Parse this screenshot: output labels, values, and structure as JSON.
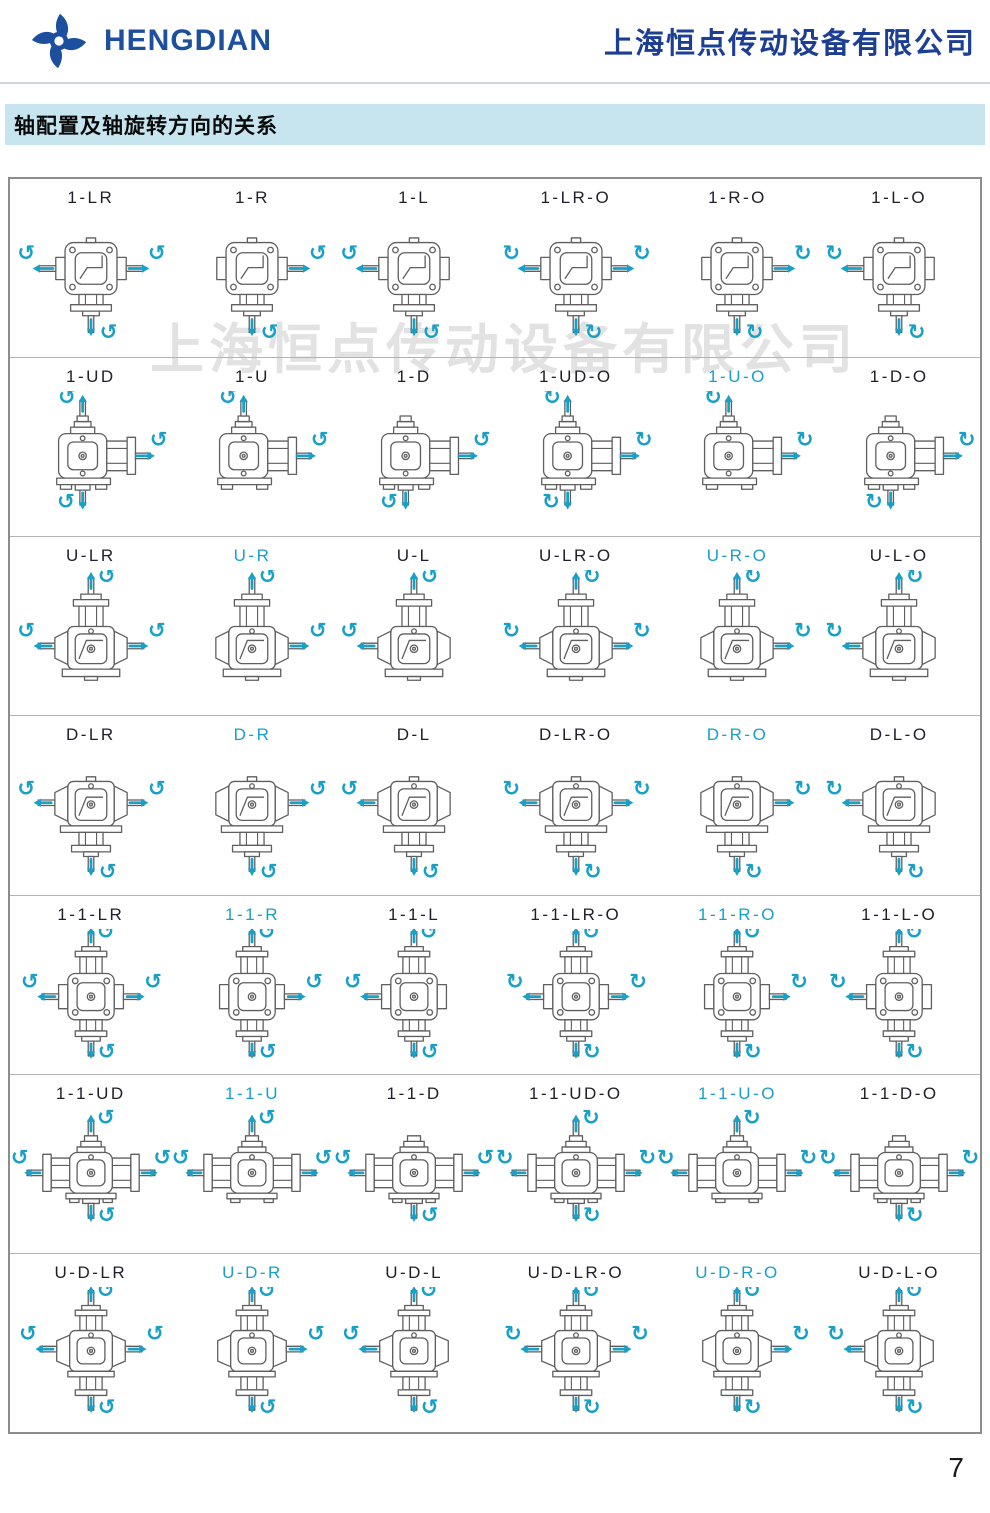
{
  "header": {
    "logo_text": "HENGDIAN",
    "company_name": "上海恒点传动设备有限公司"
  },
  "section": {
    "title": "轴配置及轴旋转方向的关系"
  },
  "watermark": "上海恒点传动设备有限公司",
  "page_number": "7",
  "colors": {
    "accent_teal": "#19a0c6",
    "brand_blue": "#1d4f9f",
    "company_navy": "#1c3f93",
    "section_bg": "#c7e5ef",
    "label_dark": "#20202b",
    "watermark_gray": "#e2e2e2"
  },
  "grid": {
    "rows": [
      {
        "view": "top",
        "cells": [
          {
            "label": "1-LR",
            "highlight": false,
            "shafts": [
              "L",
              "R",
              "D"
            ],
            "reversed": false
          },
          {
            "label": "1-R",
            "highlight": false,
            "shafts": [
              "R",
              "D"
            ],
            "reversed": false
          },
          {
            "label": "1-L",
            "highlight": false,
            "shafts": [
              "L",
              "D"
            ],
            "reversed": false
          },
          {
            "label": "1-LR-O",
            "highlight": false,
            "shafts": [
              "L",
              "R",
              "D"
            ],
            "reversed": true
          },
          {
            "label": "1-R-O",
            "highlight": false,
            "shafts": [
              "R",
              "D"
            ],
            "reversed": true
          },
          {
            "label": "1-L-O",
            "highlight": false,
            "shafts": [
              "L",
              "D"
            ],
            "reversed": true
          }
        ]
      },
      {
        "view": "side",
        "cells": [
          {
            "label": "1-UD",
            "highlight": false,
            "shafts": [
              "U",
              "D",
              "R"
            ],
            "reversed": false
          },
          {
            "label": "1-U",
            "highlight": false,
            "shafts": [
              "U",
              "R"
            ],
            "reversed": false
          },
          {
            "label": "1-D",
            "highlight": false,
            "shafts": [
              "D",
              "R"
            ],
            "reversed": false
          },
          {
            "label": "1-UD-O",
            "highlight": false,
            "shafts": [
              "U",
              "D",
              "R"
            ],
            "reversed": true
          },
          {
            "label": "1-U-O",
            "highlight": true,
            "shafts": [
              "U",
              "R"
            ],
            "reversed": true
          },
          {
            "label": "1-D-O",
            "highlight": false,
            "shafts": [
              "D",
              "R"
            ],
            "reversed": true
          }
        ]
      },
      {
        "view": "front-up",
        "cells": [
          {
            "label": "U-LR",
            "highlight": false,
            "shafts": [
              "U",
              "L",
              "R"
            ],
            "reversed": false
          },
          {
            "label": "U-R",
            "highlight": true,
            "shafts": [
              "U",
              "R"
            ],
            "reversed": false
          },
          {
            "label": "U-L",
            "highlight": false,
            "shafts": [
              "U",
              "L"
            ],
            "reversed": false
          },
          {
            "label": "U-LR-O",
            "highlight": false,
            "shafts": [
              "U",
              "L",
              "R"
            ],
            "reversed": true
          },
          {
            "label": "U-R-O",
            "highlight": true,
            "shafts": [
              "U",
              "R"
            ],
            "reversed": true
          },
          {
            "label": "U-L-O",
            "highlight": false,
            "shafts": [
              "U",
              "L"
            ],
            "reversed": true
          }
        ]
      },
      {
        "view": "front-down",
        "cells": [
          {
            "label": "D-LR",
            "highlight": false,
            "shafts": [
              "D",
              "L",
              "R"
            ],
            "reversed": false
          },
          {
            "label": "D-R",
            "highlight": true,
            "shafts": [
              "D",
              "R"
            ],
            "reversed": false
          },
          {
            "label": "D-L",
            "highlight": false,
            "shafts": [
              "D",
              "L"
            ],
            "reversed": false
          },
          {
            "label": "D-LR-O",
            "highlight": false,
            "shafts": [
              "D",
              "L",
              "R"
            ],
            "reversed": true
          },
          {
            "label": "D-R-O",
            "highlight": true,
            "shafts": [
              "D",
              "R"
            ],
            "reversed": true
          },
          {
            "label": "D-L-O",
            "highlight": false,
            "shafts": [
              "D",
              "L"
            ],
            "reversed": true
          }
        ]
      },
      {
        "view": "cross",
        "cells": [
          {
            "label": "1-1-LR",
            "highlight": false,
            "shafts": [
              "U",
              "D",
              "L",
              "R"
            ],
            "reversed": false
          },
          {
            "label": "1-1-R",
            "highlight": true,
            "shafts": [
              "U",
              "D",
              "R"
            ],
            "reversed": false
          },
          {
            "label": "1-1-L",
            "highlight": false,
            "shafts": [
              "U",
              "D",
              "L"
            ],
            "reversed": false
          },
          {
            "label": "1-1-LR-O",
            "highlight": false,
            "shafts": [
              "U",
              "D",
              "L",
              "R"
            ],
            "reversed": true
          },
          {
            "label": "1-1-R-O",
            "highlight": true,
            "shafts": [
              "U",
              "D",
              "R"
            ],
            "reversed": true
          },
          {
            "label": "1-1-L-O",
            "highlight": false,
            "shafts": [
              "U",
              "D",
              "L"
            ],
            "reversed": true
          }
        ]
      },
      {
        "view": "wide",
        "cells": [
          {
            "label": "1-1-UD",
            "highlight": false,
            "shafts": [
              "L",
              "R",
              "U",
              "D"
            ],
            "reversed": false
          },
          {
            "label": "1-1-U",
            "highlight": true,
            "shafts": [
              "L",
              "R",
              "U"
            ],
            "reversed": false
          },
          {
            "label": "1-1-D",
            "highlight": false,
            "shafts": [
              "L",
              "R",
              "D"
            ],
            "reversed": false
          },
          {
            "label": "1-1-UD-O",
            "highlight": false,
            "shafts": [
              "L",
              "R",
              "U",
              "D"
            ],
            "reversed": true
          },
          {
            "label": "1-1-U-O",
            "highlight": true,
            "shafts": [
              "L",
              "R",
              "U"
            ],
            "reversed": true
          },
          {
            "label": "1-1-D-O",
            "highlight": false,
            "shafts": [
              "L",
              "R",
              "D"
            ],
            "reversed": true
          }
        ]
      },
      {
        "view": "front-ud",
        "cells": [
          {
            "label": "U-D-LR",
            "highlight": false,
            "shafts": [
              "U",
              "D",
              "L",
              "R"
            ],
            "reversed": false
          },
          {
            "label": "U-D-R",
            "highlight": true,
            "shafts": [
              "U",
              "D",
              "R"
            ],
            "reversed": false
          },
          {
            "label": "U-D-L",
            "highlight": false,
            "shafts": [
              "U",
              "D",
              "L"
            ],
            "reversed": false
          },
          {
            "label": "U-D-LR-O",
            "highlight": false,
            "shafts": [
              "U",
              "D",
              "L",
              "R"
            ],
            "reversed": true
          },
          {
            "label": "U-D-R-O",
            "highlight": true,
            "shafts": [
              "U",
              "D",
              "R"
            ],
            "reversed": true
          },
          {
            "label": "U-D-L-O",
            "highlight": false,
            "shafts": [
              "U",
              "D",
              "L"
            ],
            "reversed": true
          }
        ]
      }
    ]
  }
}
